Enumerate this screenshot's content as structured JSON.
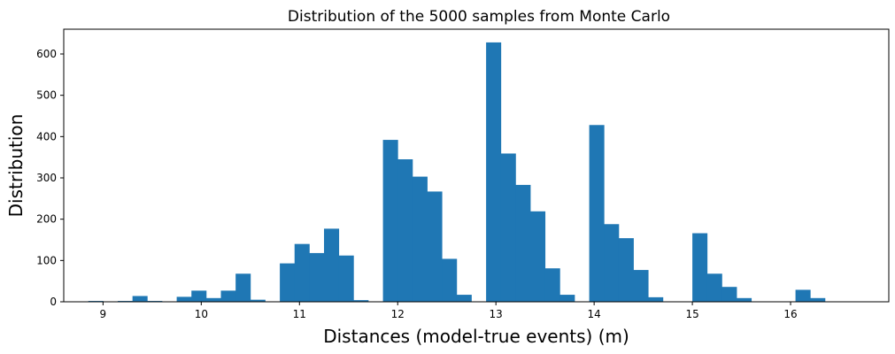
{
  "chart_data": {
    "type": "bar",
    "title": "Distribution of the 5000 samples from Monte Carlo",
    "xlabel": "Distances (model-true events) (m)",
    "ylabel": "Distribution",
    "xlim": [
      8.6,
      17.0
    ],
    "ylim": [
      0,
      660
    ],
    "xticks": [
      9,
      10,
      11,
      12,
      13,
      14,
      15,
      16
    ],
    "yticks": [
      0,
      100,
      200,
      300,
      400,
      500,
      600
    ],
    "bin_start": 8.85,
    "bin_width": 0.15,
    "bar_color": "#1f77b4",
    "grid": false,
    "legend": "none",
    "values": [
      2,
      0,
      2,
      14,
      2,
      0,
      12,
      27,
      9,
      27,
      68,
      5,
      0,
      93,
      140,
      118,
      177,
      112,
      4,
      0,
      392,
      345,
      303,
      267,
      104,
      17,
      0,
      628,
      359,
      283,
      219,
      81,
      17,
      0,
      428,
      188,
      154,
      77,
      11,
      0,
      0,
      166,
      68,
      36,
      9,
      0,
      0,
      0,
      29,
      9
    ]
  }
}
